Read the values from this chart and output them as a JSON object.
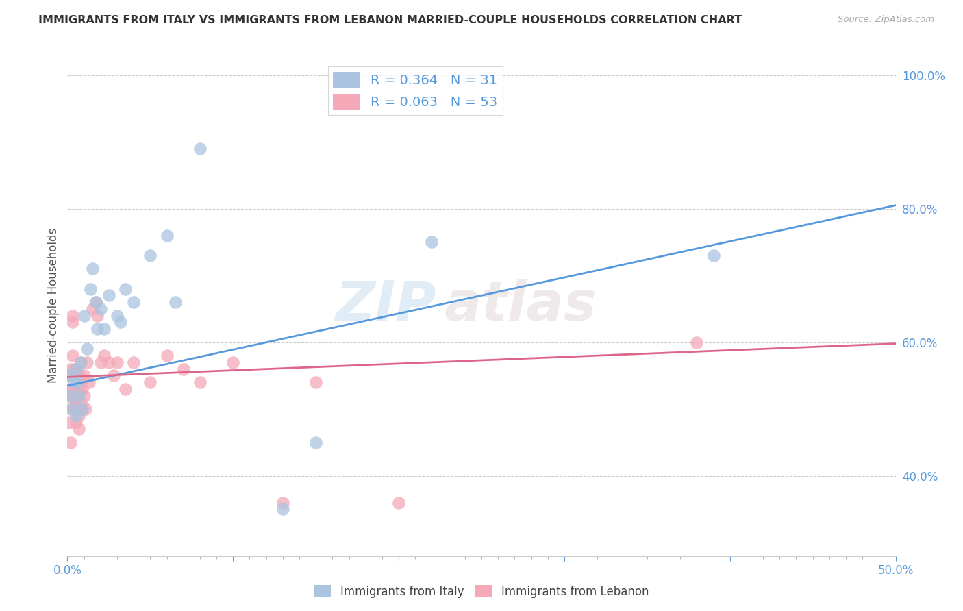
{
  "title": "IMMIGRANTS FROM ITALY VS IMMIGRANTS FROM LEBANON MARRIED-COUPLE HOUSEHOLDS CORRELATION CHART",
  "source": "Source: ZipAtlas.com",
  "ylabel": "Married-couple Households",
  "x_min": 0.0,
  "x_max": 0.5,
  "y_min": 0.28,
  "y_max": 1.03,
  "x_ticks": [
    0.0,
    0.1,
    0.2,
    0.3,
    0.4,
    0.5
  ],
  "x_tick_labels": [
    "0.0%",
    "",
    "",
    "",
    "",
    "50.0%"
  ],
  "x_minor_ticks": [
    0.01,
    0.02,
    0.03,
    0.04,
    0.05,
    0.06,
    0.07,
    0.08,
    0.09,
    0.11,
    0.12,
    0.13,
    0.14,
    0.15,
    0.16,
    0.17,
    0.18,
    0.19,
    0.21,
    0.22,
    0.23,
    0.24,
    0.25,
    0.26,
    0.27,
    0.28,
    0.29,
    0.31,
    0.32,
    0.33,
    0.34,
    0.35,
    0.36,
    0.37,
    0.38,
    0.39,
    0.41,
    0.42,
    0.43,
    0.44,
    0.45,
    0.46,
    0.47,
    0.48,
    0.49
  ],
  "y_ticks": [
    0.4,
    0.6,
    0.8,
    1.0
  ],
  "y_tick_labels": [
    "40.0%",
    "60.0%",
    "80.0%",
    "100.0%"
  ],
  "legend_italy": "R = 0.364   N = 31",
  "legend_lebanon": "R = 0.063   N = 53",
  "legend_label_italy": "Immigrants from Italy",
  "legend_label_lebanon": "Immigrants from Lebanon",
  "color_italy": "#aac4df",
  "color_lebanon": "#f4a8b8",
  "color_italy_line": "#5599dd",
  "color_lebanon_line": "#dd6688",
  "watermark_zip": "ZIP",
  "watermark_atlas": "atlas",
  "italy_line_x0": 0.0,
  "italy_line_y0": 0.535,
  "italy_line_x1": 0.5,
  "italy_line_y1": 0.805,
  "lebanon_line_x0": 0.0,
  "lebanon_line_y0": 0.548,
  "lebanon_line_x1": 0.5,
  "lebanon_line_y1": 0.598,
  "italy_x": [
    0.001,
    0.002,
    0.003,
    0.004,
    0.005,
    0.005,
    0.006,
    0.007,
    0.008,
    0.009,
    0.01,
    0.012,
    0.014,
    0.015,
    0.017,
    0.018,
    0.02,
    0.022,
    0.025,
    0.03,
    0.032,
    0.035,
    0.04,
    0.05,
    0.06,
    0.065,
    0.08,
    0.13,
    0.15,
    0.22,
    0.39
  ],
  "italy_y": [
    0.55,
    0.52,
    0.5,
    0.54,
    0.56,
    0.49,
    0.54,
    0.52,
    0.57,
    0.5,
    0.64,
    0.59,
    0.68,
    0.71,
    0.66,
    0.62,
    0.65,
    0.62,
    0.67,
    0.64,
    0.63,
    0.68,
    0.66,
    0.73,
    0.76,
    0.66,
    0.89,
    0.35,
    0.45,
    0.75,
    0.73
  ],
  "lebanon_x": [
    0.001,
    0.001,
    0.001,
    0.002,
    0.002,
    0.002,
    0.002,
    0.003,
    0.003,
    0.003,
    0.003,
    0.004,
    0.004,
    0.004,
    0.005,
    0.005,
    0.005,
    0.006,
    0.006,
    0.006,
    0.007,
    0.007,
    0.007,
    0.007,
    0.008,
    0.008,
    0.008,
    0.009,
    0.009,
    0.01,
    0.01,
    0.011,
    0.012,
    0.013,
    0.015,
    0.017,
    0.018,
    0.02,
    0.022,
    0.025,
    0.028,
    0.03,
    0.035,
    0.04,
    0.05,
    0.06,
    0.07,
    0.08,
    0.1,
    0.13,
    0.15,
    0.2,
    0.38
  ],
  "lebanon_y": [
    0.52,
    0.55,
    0.48,
    0.56,
    0.5,
    0.53,
    0.45,
    0.64,
    0.63,
    0.58,
    0.53,
    0.52,
    0.56,
    0.5,
    0.53,
    0.51,
    0.48,
    0.56,
    0.52,
    0.5,
    0.53,
    0.55,
    0.49,
    0.47,
    0.54,
    0.57,
    0.51,
    0.53,
    0.5,
    0.55,
    0.52,
    0.5,
    0.57,
    0.54,
    0.65,
    0.66,
    0.64,
    0.57,
    0.58,
    0.57,
    0.55,
    0.57,
    0.53,
    0.57,
    0.54,
    0.58,
    0.56,
    0.54,
    0.57,
    0.36,
    0.54,
    0.36,
    0.6
  ]
}
